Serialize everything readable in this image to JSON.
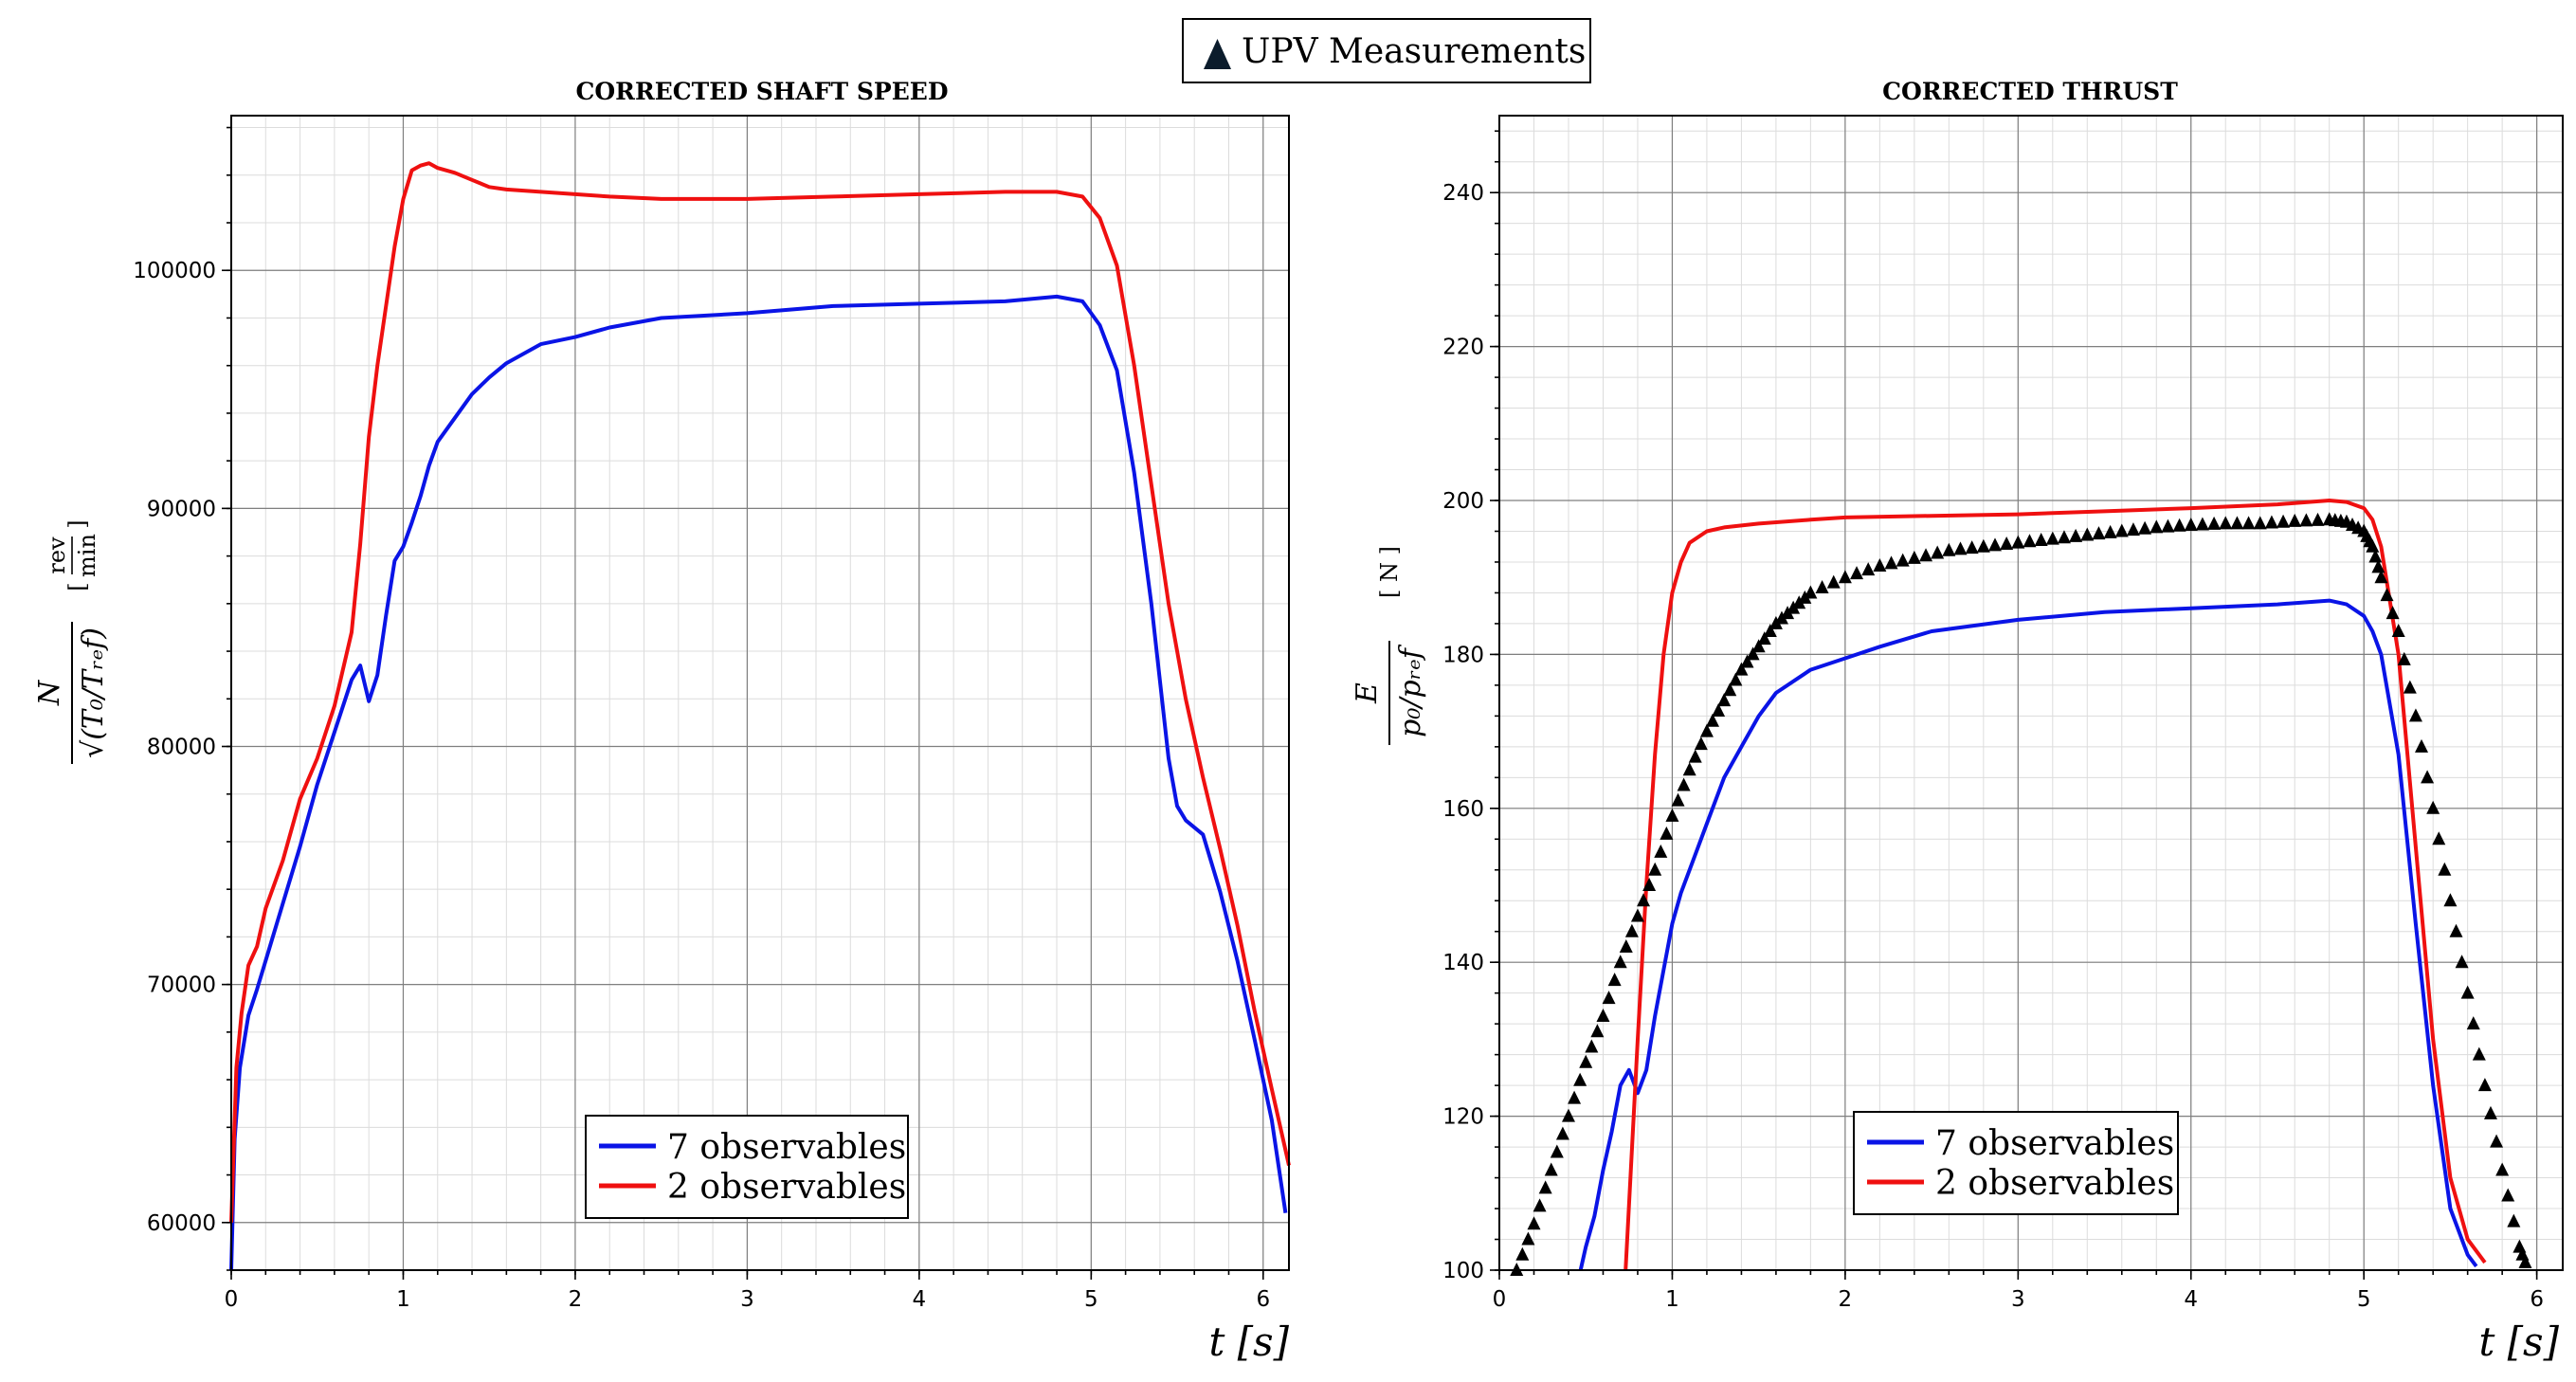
{
  "top_legend": {
    "label": "UPV Measurements",
    "marker_color": "#0b1c2c"
  },
  "chart_data": [
    {
      "type": "line",
      "title": "CORRECTED SHAFT SPEED",
      "xlabel": "t [s]",
      "ylabel": "N / √(T0/Tref)",
      "yunit_num": "rev",
      "yunit_den": "min",
      "xlim": [
        0,
        6.15
      ],
      "ylim": [
        58000,
        106500
      ],
      "xticks": [
        0,
        1,
        2,
        3,
        4,
        5,
        6
      ],
      "yticks": [
        60000,
        70000,
        80000,
        90000,
        100000
      ],
      "grid": true,
      "legend_location": "lower-center",
      "series": [
        {
          "name": "7 observables",
          "color": "#0a14e6",
          "x": [
            0,
            0.02,
            0.05,
            0.1,
            0.15,
            0.2,
            0.3,
            0.4,
            0.5,
            0.6,
            0.7,
            0.75,
            0.8,
            0.85,
            0.9,
            0.95,
            1.0,
            1.05,
            1.1,
            1.15,
            1.2,
            1.3,
            1.4,
            1.5,
            1.6,
            1.8,
            2.0,
            2.2,
            2.5,
            3.0,
            3.5,
            4.0,
            4.5,
            4.8,
            4.95,
            5.05,
            5.15,
            5.25,
            5.35,
            5.45,
            5.5,
            5.55,
            5.65,
            5.75,
            5.85,
            5.95,
            6.05,
            6.13
          ],
          "y": [
            58000,
            63500,
            66500,
            68700,
            69800,
            71000,
            73400,
            75800,
            78400,
            80600,
            82800,
            83400,
            81900,
            83000,
            85500,
            87800,
            88400,
            89400,
            90500,
            91800,
            92800,
            93800,
            94800,
            95500,
            96100,
            96900,
            97200,
            97600,
            98000,
            98200,
            98500,
            98600,
            98700,
            98900,
            98700,
            97700,
            95800,
            91500,
            86000,
            79500,
            77500,
            76900,
            76300,
            73900,
            71000,
            67700,
            64300,
            60400
          ]
        },
        {
          "name": "2 observables",
          "color": "#ef1010",
          "x": [
            0,
            0.03,
            0.06,
            0.1,
            0.15,
            0.2,
            0.3,
            0.4,
            0.5,
            0.6,
            0.7,
            0.75,
            0.8,
            0.85,
            0.9,
            0.95,
            1.0,
            1.05,
            1.1,
            1.15,
            1.2,
            1.3,
            1.4,
            1.5,
            1.6,
            1.8,
            2.0,
            2.2,
            2.5,
            3.0,
            3.5,
            4.0,
            4.5,
            4.8,
            4.95,
            5.05,
            5.15,
            5.25,
            5.35,
            5.45,
            5.55,
            5.65,
            5.75,
            5.85,
            5.95,
            6.05,
            6.15
          ],
          "y": [
            60000,
            66500,
            68800,
            70800,
            71600,
            73200,
            75200,
            77800,
            79500,
            81700,
            84800,
            88500,
            93000,
            96000,
            98500,
            101000,
            103000,
            104200,
            104400,
            104500,
            104300,
            104100,
            103800,
            103500,
            103400,
            103300,
            103200,
            103100,
            103000,
            103000,
            103100,
            103200,
            103300,
            103300,
            103100,
            102200,
            100200,
            96000,
            91000,
            86000,
            82000,
            78700,
            75700,
            72500,
            68900,
            65600,
            62400
          ]
        }
      ]
    },
    {
      "type": "line",
      "title": "CORRECTED THRUST",
      "xlabel": "t [s]",
      "ylabel": "E / (p0/pref)",
      "yunit": "[ N ]",
      "xlim": [
        0,
        6.15
      ],
      "ylim": [
        100,
        250
      ],
      "xticks": [
        0,
        1,
        2,
        3,
        4,
        5,
        6
      ],
      "yticks": [
        100,
        120,
        140,
        160,
        180,
        200,
        220,
        240
      ],
      "grid": true,
      "legend_location": "lower-center",
      "series": [
        {
          "name": "7 observables",
          "color": "#0a14e6",
          "x": [
            0.47,
            0.5,
            0.55,
            0.6,
            0.65,
            0.7,
            0.75,
            0.8,
            0.85,
            0.9,
            0.95,
            1.0,
            1.05,
            1.1,
            1.2,
            1.3,
            1.4,
            1.5,
            1.6,
            1.8,
            2.0,
            2.2,
            2.5,
            3.0,
            3.5,
            4.0,
            4.5,
            4.8,
            4.9,
            5.0,
            5.05,
            5.1,
            5.2,
            5.3,
            5.4,
            5.5,
            5.6,
            5.65
          ],
          "y": [
            100,
            103,
            107,
            113,
            118,
            124,
            126,
            123,
            126,
            133,
            139,
            145,
            149,
            152,
            158,
            164,
            168,
            172,
            175,
            178,
            179.5,
            181,
            183,
            184.5,
            185.5,
            186,
            186.5,
            187,
            186.5,
            185,
            183,
            180,
            167,
            145,
            124,
            108,
            102,
            100.5
          ]
        },
        {
          "name": "2 observables",
          "color": "#ef1010",
          "x": [
            0.73,
            0.8,
            0.85,
            0.9,
            0.95,
            1.0,
            1.05,
            1.1,
            1.2,
            1.3,
            1.5,
            1.8,
            2.0,
            2.5,
            3.0,
            3.5,
            4.0,
            4.5,
            4.8,
            4.9,
            5.0,
            5.05,
            5.1,
            5.2,
            5.3,
            5.4,
            5.5,
            5.6,
            5.7
          ],
          "y": [
            100,
            130,
            150,
            167,
            180,
            188,
            192,
            194.5,
            196,
            196.5,
            197,
            197.5,
            197.8,
            198,
            198.2,
            198.6,
            199,
            199.5,
            200,
            199.8,
            199,
            197.5,
            194,
            180,
            155,
            130,
            112,
            104,
            101
          ]
        }
      ]
    }
  ],
  "upv_measurements": {
    "name": "UPV Measurements",
    "x": [
      0.1,
      0.2,
      0.3,
      0.4,
      0.5,
      0.6,
      0.7,
      0.8,
      0.9,
      1.0,
      1.1,
      1.2,
      1.3,
      1.4,
      1.5,
      1.6,
      1.7,
      1.8,
      2.0,
      2.2,
      2.4,
      2.6,
      2.8,
      3.0,
      3.2,
      3.4,
      3.6,
      3.8,
      4.0,
      4.2,
      4.4,
      4.6,
      4.8,
      4.9,
      5.0,
      5.05,
      5.1,
      5.2,
      5.3,
      5.4,
      5.5,
      5.6,
      5.7,
      5.8,
      5.9,
      5.95
    ],
    "y": [
      100,
      106,
      113,
      120,
      127,
      133,
      140,
      146,
      152,
      159,
      165,
      170,
      174,
      178,
      181,
      184,
      186,
      188,
      190,
      191.5,
      192.5,
      193.5,
      194,
      194.5,
      195,
      195.5,
      196,
      196.5,
      196.8,
      197,
      197,
      197.3,
      197.5,
      197.2,
      196,
      194,
      190,
      183,
      172,
      160,
      148,
      136,
      124,
      113,
      103,
      100
    ]
  }
}
